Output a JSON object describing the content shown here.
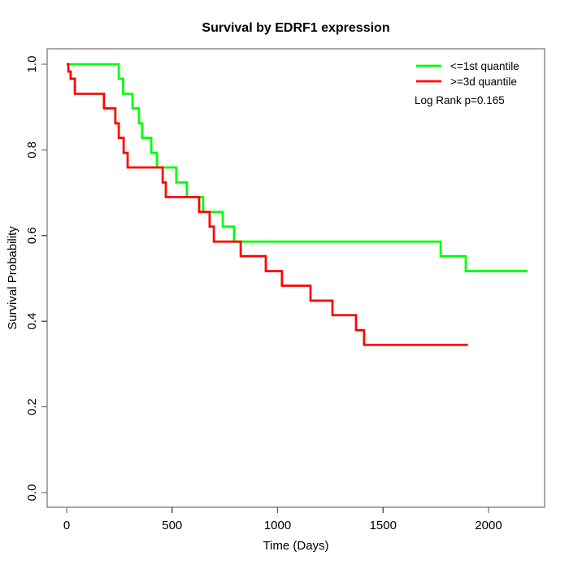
{
  "chart_data": {
    "type": "line",
    "variant": "kaplan-meier-step",
    "title": "Survival by EDRF1 expression",
    "xlabel": "Time (Days)",
    "ylabel": "Survival Probability",
    "xlim": [
      0,
      2265
    ],
    "ylim": [
      0.0,
      1.0
    ],
    "xticks": [
      0,
      500,
      1000,
      1500,
      2000
    ],
    "xtick_labels": [
      "0",
      "500",
      "1000",
      "1500",
      "2000"
    ],
    "yticks": [
      0.0,
      0.2,
      0.4,
      0.6,
      0.8,
      1.0
    ],
    "ytick_labels": [
      "0.0",
      "0.2",
      "0.4",
      "0.6",
      "0.8",
      "1.0"
    ],
    "grid": false,
    "legend_position": "top-right",
    "annotation": "Log Rank p=0.165",
    "series": [
      {
        "name": "<=1st quantile",
        "color": "#00ff00",
        "start": [
          0,
          1.0
        ],
        "steps": [
          [
            247,
            0.966
          ],
          [
            268,
            0.931
          ],
          [
            312,
            0.897
          ],
          [
            343,
            0.862
          ],
          [
            358,
            0.828
          ],
          [
            401,
            0.793
          ],
          [
            428,
            0.759
          ],
          [
            520,
            0.724
          ],
          [
            570,
            0.69
          ],
          [
            647,
            0.655
          ],
          [
            740,
            0.621
          ],
          [
            794,
            0.586
          ],
          [
            1773,
            0.552
          ],
          [
            1892,
            0.517
          ]
        ],
        "end_time": 2185
      },
      {
        "name": ">=3d quantile",
        "color": "#ff0000",
        "start": [
          0,
          1.0
        ],
        "steps": [
          [
            8,
            0.983
          ],
          [
            19,
            0.966
          ],
          [
            39,
            0.931
          ],
          [
            177,
            0.897
          ],
          [
            231,
            0.862
          ],
          [
            247,
            0.828
          ],
          [
            270,
            0.793
          ],
          [
            289,
            0.759
          ],
          [
            455,
            0.724
          ],
          [
            470,
            0.69
          ],
          [
            628,
            0.655
          ],
          [
            678,
            0.621
          ],
          [
            698,
            0.586
          ],
          [
            825,
            0.552
          ],
          [
            944,
            0.517
          ],
          [
            1021,
            0.483
          ],
          [
            1156,
            0.448
          ],
          [
            1260,
            0.414
          ],
          [
            1372,
            0.379
          ],
          [
            1410,
            0.345
          ]
        ],
        "end_time": 1903
      }
    ]
  }
}
